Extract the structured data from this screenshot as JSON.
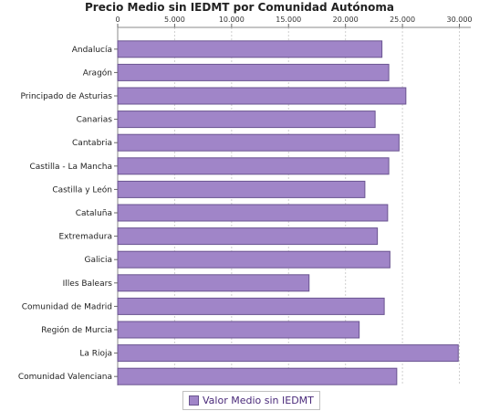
{
  "chart_data": {
    "type": "bar",
    "orientation": "horizontal",
    "title": "Precio Medio sin IEDMT por Comunidad Autónoma",
    "categories": [
      "Andalucía",
      "Aragón",
      "Principado de Asturias",
      "Canarias",
      "Cantabria",
      "Castilla - La Mancha",
      "Castilla y León",
      "Cataluña",
      "Extremadura",
      "Galicia",
      "Illes Balears",
      "Comunidad de Madrid",
      "Región de Murcia",
      "La Rioja",
      "Comunidad Valenciana"
    ],
    "series": [
      {
        "name": "Valor Medio sin IEDMT",
        "color": "#a085c8",
        "values": [
          23200,
          23800,
          25300,
          22600,
          24700,
          23800,
          21700,
          23700,
          22800,
          23900,
          16800,
          23400,
          21200,
          29900,
          24500
        ]
      }
    ],
    "xlim": [
      0,
      31000
    ],
    "xticks": [
      "0",
      "5.000",
      "10.000",
      "15.000",
      "20.000",
      "25.000",
      "30.000"
    ],
    "xtick_values": [
      0,
      5000,
      10000,
      15000,
      20000,
      25000,
      30000
    ],
    "grid": "vertical-dashed",
    "legend_position": "bottom-center"
  }
}
